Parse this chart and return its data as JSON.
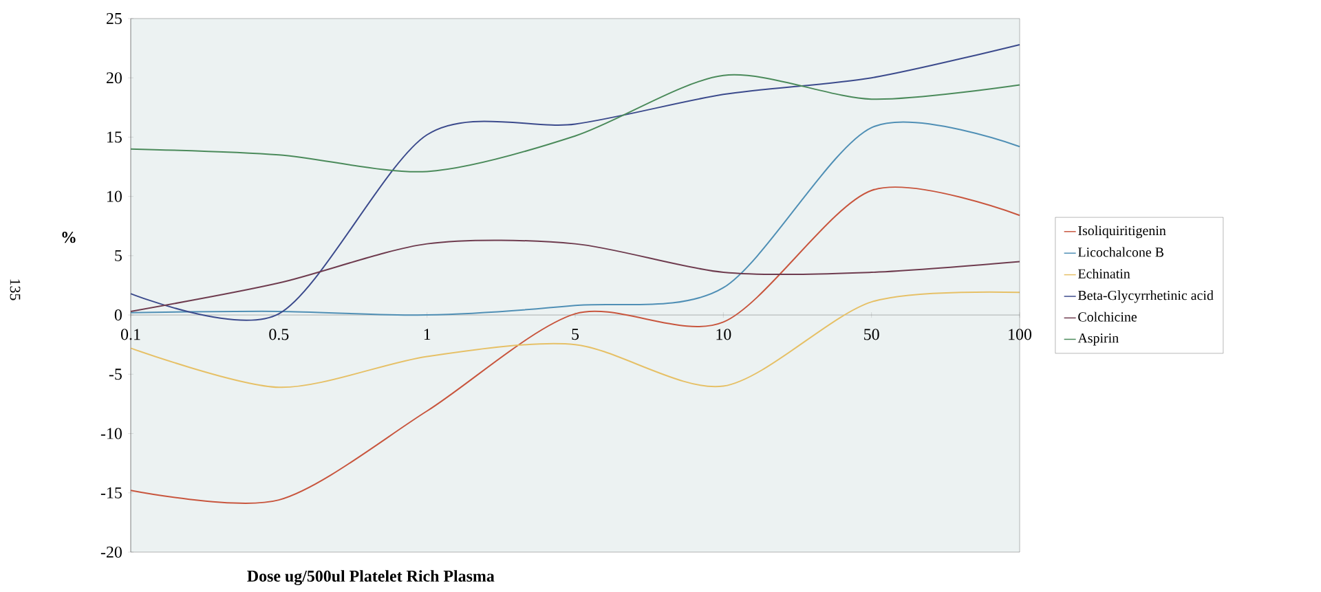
{
  "chart_data": {
    "type": "line",
    "xlabel": "Dose ug/500ul Platelet Rich Plasma",
    "ylabel": "%",
    "categories": [
      "0.1",
      "0.5",
      "1",
      "5",
      "10",
      "50",
      "100"
    ],
    "series": [
      {
        "name": "Isoliquiritigenin",
        "color": "#c8553d",
        "values": [
          -14.8,
          -15.6,
          -8.1,
          0.1,
          -0.6,
          10.5,
          8.4
        ]
      },
      {
        "name": "Licochalcone B",
        "color": "#4f8fb5",
        "values": [
          0.2,
          0.3,
          0.0,
          0.8,
          2.3,
          15.8,
          14.2
        ]
      },
      {
        "name": "Echinatin",
        "color": "#e6c066",
        "values": [
          -2.8,
          -6.1,
          -3.5,
          -2.5,
          -6.0,
          1.1,
          1.9
        ]
      },
      {
        "name": "Beta-Glycyrrhetinic acid",
        "color": "#3b4a8c",
        "values": [
          1.8,
          0.1,
          15.2,
          16.1,
          18.6,
          20.0,
          22.8
        ]
      },
      {
        "name": "Colchicine",
        "color": "#6e3b4e",
        "values": [
          0.3,
          2.7,
          6.0,
          6.0,
          3.6,
          3.6,
          4.5
        ]
      },
      {
        "name": "Aspirin",
        "color": "#4a8a5a",
        "values": [
          14.0,
          13.5,
          12.1,
          15.1,
          20.2,
          18.2,
          19.4
        ]
      }
    ],
    "ylim": [
      -20,
      25
    ],
    "yticks": [
      -20,
      -15,
      -10,
      -5,
      0,
      5,
      10,
      15,
      20,
      25
    ],
    "grid": false,
    "legend": "right",
    "marker": "none",
    "line_style": "solid",
    "annotations": [
      "135"
    ]
  }
}
